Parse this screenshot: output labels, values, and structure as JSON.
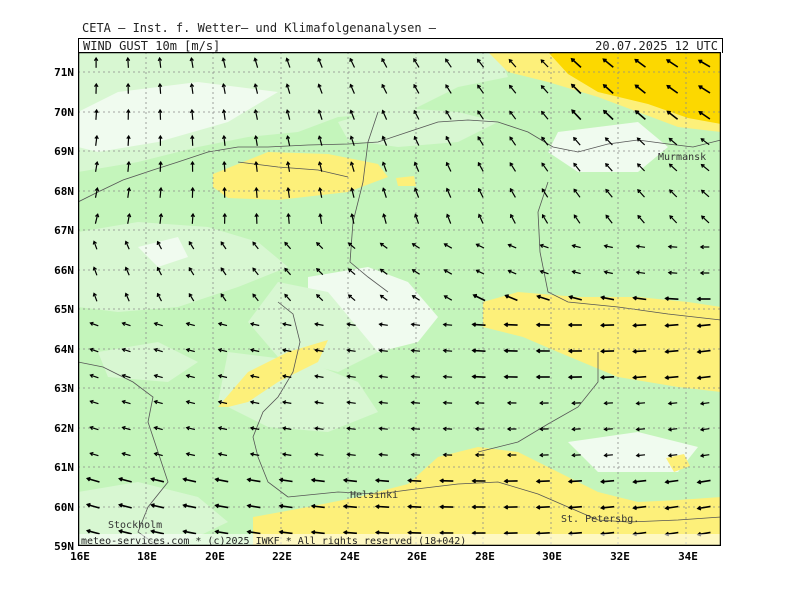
{
  "header": {
    "model_line": "CETA — Inst. f. Wetter— und Klimafolgenanalysen —",
    "parameter": "WIND_GUST_10m_[m/s]",
    "datetime": "20.07.2025 12 UTC"
  },
  "map": {
    "lat_labels": [
      "71N",
      "70N",
      "69N",
      "68N",
      "67N",
      "66N",
      "65N",
      "64N",
      "63N",
      "62N",
      "61N",
      "60N",
      "59N"
    ],
    "lon_labels": [
      "16E",
      "18E",
      "20E",
      "22E",
      "24E",
      "26E",
      "28E",
      "30E",
      "32E",
      "34E"
    ],
    "cities": [
      {
        "name": "Murmansk"
      },
      {
        "name": "Helsinki"
      },
      {
        "name": "Stockholm"
      },
      {
        "name": "St. Petersbg."
      }
    ],
    "footer": "meteo-services.com * (c)2025 IWKF * All rights reserved (18+042)",
    "colors": {
      "light": "#f0fbef",
      "pale_green": "#d8f7d2",
      "green": "#c4f5bb",
      "yellow": "#fdf07a",
      "gold": "#fcd800",
      "grid": "#8a8a8a",
      "coast": "#555555"
    }
  }
}
